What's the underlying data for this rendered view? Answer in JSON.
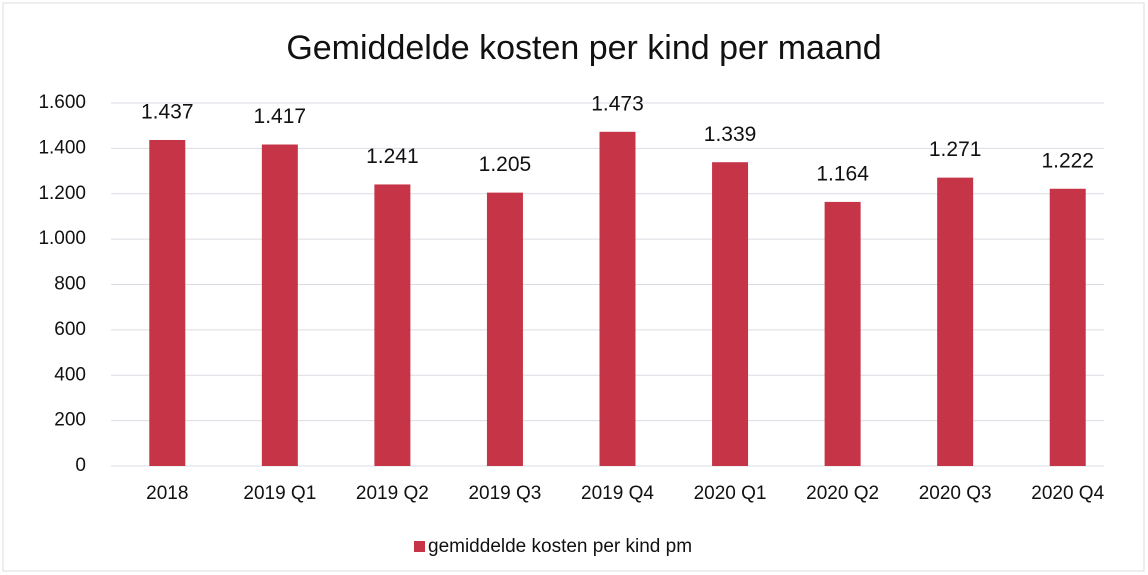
{
  "chart_data": {
    "type": "bar",
    "title": "Gemiddelde kosten per kind per maand",
    "categories": [
      "2018",
      "2019 Q1",
      "2019 Q2",
      "2019 Q3",
      "2019 Q4",
      "2020 Q1",
      "2020 Q2",
      "2020 Q3",
      "2020 Q4"
    ],
    "series": [
      {
        "name": "gemiddelde kosten per kind pm",
        "color": "#c63447",
        "values": [
          1437,
          1417,
          1241,
          1205,
          1473,
          1339,
          1164,
          1271,
          1222
        ],
        "value_labels": [
          "1.437",
          "1.417",
          "1.241",
          "1.205",
          "1.473",
          "1.339",
          "1.164",
          "1.271",
          "1.222"
        ]
      }
    ],
    "ylim": [
      0,
      1600
    ],
    "yticks": [
      0,
      200,
      400,
      600,
      800,
      {
        "value": 1000,
        "label": "1.000"
      },
      {
        "value": 1200,
        "label": "1.200"
      },
      {
        "value": 1400,
        "label": "1.400"
      },
      {
        "value": 1600,
        "label": "1.600"
      }
    ],
    "grid": true,
    "legend": "bottom"
  }
}
